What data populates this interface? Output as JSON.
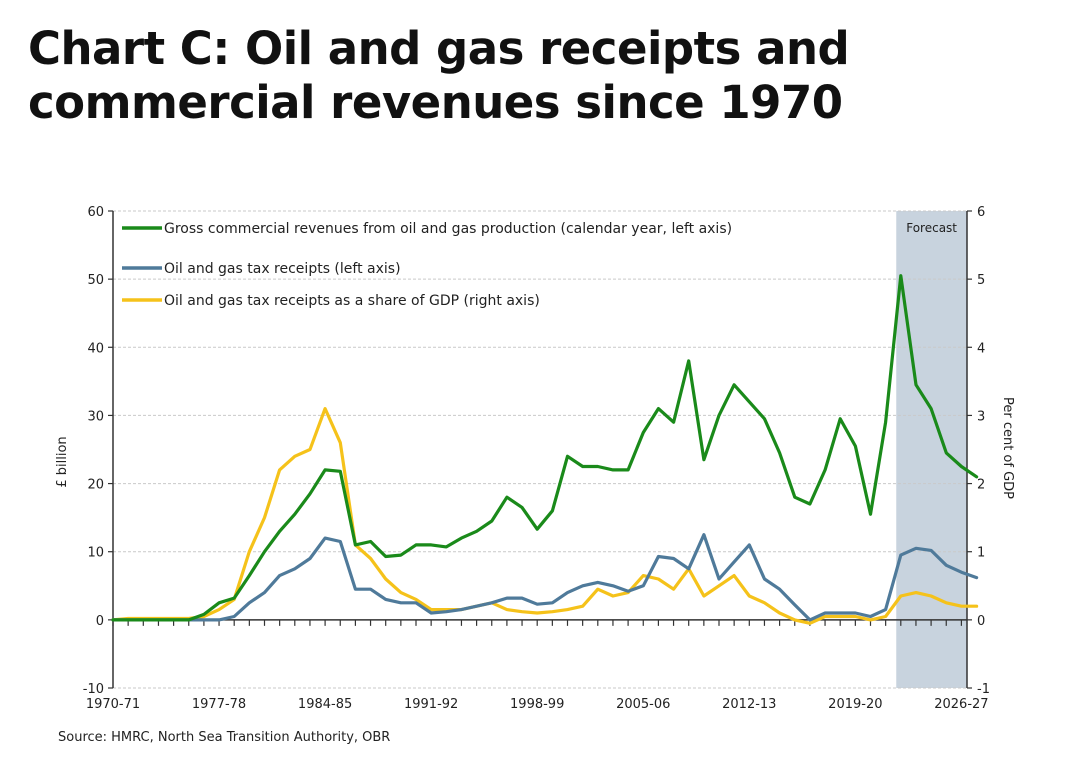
{
  "title": "Chart C: Oil and gas receipts and commercial revenues since 1970",
  "source": "Source: HMRC, North Sea Transition Authority, OBR",
  "chart_data": {
    "type": "line",
    "title": "Chart C: Oil and gas receipts and commercial revenues since 1970",
    "xlabel": "",
    "ylabel": "£ billion",
    "y2label": "Per cent of GDP",
    "ylim": [
      -10,
      60
    ],
    "y2lim": [
      -1,
      6
    ],
    "yticks": [
      "60",
      "50",
      "40",
      "30",
      "20",
      "10",
      "0",
      "-10"
    ],
    "y2ticks": [
      "6",
      "5",
      "4",
      "3",
      "2",
      "1",
      "0",
      "-1"
    ],
    "yticks_values": [
      60,
      50,
      40,
      30,
      20,
      10,
      0,
      -10
    ],
    "y2ticks_values": [
      6,
      5,
      4,
      3,
      2,
      1,
      0,
      -1
    ],
    "grid": true,
    "xtick_labels": [
      "1970-71",
      "1977-78",
      "1984-85",
      "1991-92",
      "1998-99",
      "2005-06",
      "2012-13",
      "2019-20",
      "2026-27"
    ],
    "xtick_label_indices": [
      0,
      7,
      14,
      21,
      28,
      35,
      42,
      49,
      56
    ],
    "x": [
      "1970-71",
      "1971-72",
      "1972-73",
      "1973-74",
      "1974-75",
      "1975-76",
      "1976-77",
      "1977-78",
      "1978-79",
      "1979-80",
      "1980-81",
      "1981-82",
      "1982-83",
      "1983-84",
      "1984-85",
      "1985-86",
      "1986-87",
      "1987-88",
      "1988-89",
      "1989-90",
      "1990-91",
      "1991-92",
      "1992-93",
      "1993-94",
      "1994-95",
      "1995-96",
      "1996-97",
      "1997-98",
      "1998-99",
      "1999-00",
      "2000-01",
      "2001-02",
      "2002-03",
      "2003-04",
      "2004-05",
      "2005-06",
      "2006-07",
      "2007-08",
      "2008-09",
      "2009-10",
      "2010-11",
      "2011-12",
      "2012-13",
      "2013-14",
      "2014-15",
      "2015-16",
      "2016-17",
      "2017-18",
      "2018-19",
      "2019-20",
      "2020-21",
      "2021-22",
      "2022-23",
      "2023-24",
      "2024-25",
      "2025-26",
      "2026-27",
      "2027-28"
    ],
    "forecast_start_index": 51.7,
    "forecast_label": "Forecast",
    "legend_position": "top-left",
    "series": [
      {
        "name": "Gross commercial revenues from oil and gas production (calendar year, left axis)",
        "axis": "left",
        "color": "#1a8a1a",
        "values": [
          0,
          0,
          0,
          0,
          0,
          0,
          0.8,
          2.5,
          3.2,
          6.5,
          10,
          13,
          15.5,
          18.5,
          22,
          21.8,
          11,
          11.5,
          9.3,
          9.5,
          11,
          11,
          10.7,
          12,
          13,
          14.5,
          18,
          16.5,
          13.3,
          16,
          24,
          22.5,
          22.5,
          22,
          22,
          27.5,
          31,
          29,
          38,
          23.5,
          30,
          34.5,
          32,
          29.5,
          24.5,
          18,
          17,
          22,
          29.5,
          25.5,
          15.5,
          29,
          50.5,
          34.5,
          31,
          24.5,
          22.5,
          21
        ]
      },
      {
        "name": "Oil and gas tax receipts (left axis)",
        "axis": "left",
        "color": "#4f7a9a",
        "values": [
          0,
          0,
          0,
          0,
          0,
          0,
          0,
          0,
          0.5,
          2.5,
          4,
          6.5,
          7.5,
          9,
          12,
          11.5,
          4.5,
          4.5,
          3,
          2.5,
          2.5,
          1,
          1.2,
          1.5,
          2,
          2.5,
          3.2,
          3.2,
          2.3,
          2.5,
          4,
          5,
          5.5,
          5,
          4.2,
          5,
          9.3,
          9,
          7.5,
          12.5,
          6,
          8.5,
          11,
          6,
          4.5,
          2.2,
          0,
          1,
          1,
          1,
          0.5,
          1.5,
          9.5,
          10.5,
          10.2,
          8,
          7,
          6.2
        ]
      },
      {
        "name": "Oil and gas tax receipts as a share of GDP (right axis)",
        "axis": "right",
        "color": "#f5c21a",
        "values": [
          0,
          0.02,
          0.02,
          0.02,
          0.02,
          0.02,
          0.05,
          0.15,
          0.3,
          1,
          1.5,
          2.2,
          2.4,
          2.5,
          3.1,
          2.6,
          1.1,
          0.9,
          0.6,
          0.4,
          0.3,
          0.15,
          0.15,
          0.15,
          0.2,
          0.25,
          0.15,
          0.12,
          0.1,
          0.12,
          0.15,
          0.2,
          0.45,
          0.35,
          0.4,
          0.65,
          0.6,
          0.45,
          0.75,
          0.35,
          0.5,
          0.65,
          0.35,
          0.25,
          0.1,
          0,
          -0.05,
          0.05,
          0.05,
          0.05,
          0,
          0.05,
          0.35,
          0.4,
          0.35,
          0.25,
          0.2,
          0.2
        ]
      }
    ]
  }
}
